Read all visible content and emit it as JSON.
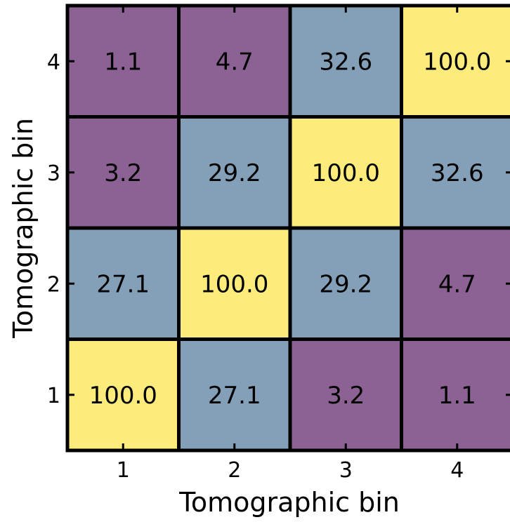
{
  "chart_data": {
    "type": "heatmap",
    "xlabel": "Tomographic bin",
    "ylabel": "Tomographic bin",
    "x_categories": [
      "1",
      "2",
      "3",
      "4"
    ],
    "y_categories": [
      "1",
      "2",
      "3",
      "4"
    ],
    "matrix": [
      [
        100.0,
        27.1,
        3.2,
        1.1
      ],
      [
        27.1,
        100.0,
        29.2,
        4.7
      ],
      [
        3.2,
        29.2,
        100.0,
        32.6
      ],
      [
        1.1,
        4.7,
        32.6,
        100.0
      ]
    ],
    "value_format": "one-decimal",
    "color_scale": {
      "low": "#8c6194",
      "mid": "#84a0b9",
      "high": "#fdec7b"
    },
    "grid": false,
    "legend": "none"
  }
}
